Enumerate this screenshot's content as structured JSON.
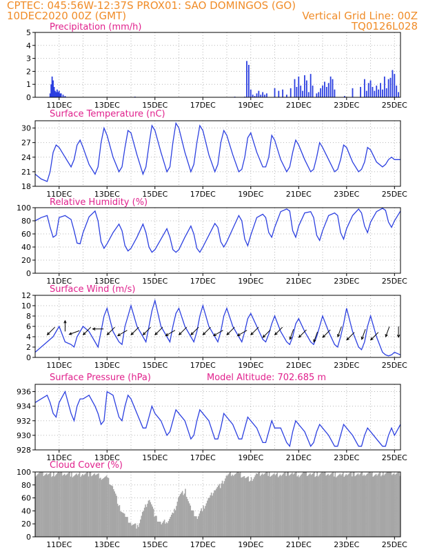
{
  "header": {
    "line1_left": "CPTEC:  045:56W-12:37S   PROX01: SAO DOMINGOS (GO)",
    "line2_left": "10DEC2020 00Z (GMT)",
    "line2_right": "Vertical Grid Line: 00Z",
    "line3_right": "TQ0126L028"
  },
  "colors": {
    "header": "#f08c28",
    "title": "#e0208c",
    "series": "#2b3fe0",
    "cloud": "#a6a6a6",
    "grid": "#b5b5b5"
  },
  "chart_data": [
    {
      "id": "precip",
      "type": "bar",
      "title": "Precipitation (mm/h)",
      "ylim": [
        0,
        5
      ],
      "yticks": [
        0,
        1,
        2,
        3,
        4,
        5
      ],
      "xticks": [
        "11DEC",
        "13DEC",
        "15DEC",
        "17DEC",
        "19DEC",
        "21DEC",
        "23DEC",
        "25DEC"
      ],
      "xrange_hours": [
        0,
        366
      ],
      "x": [
        15,
        16,
        17,
        18,
        19,
        20,
        21,
        22,
        23,
        24,
        25,
        26,
        28,
        30,
        100,
        200,
        210,
        212,
        214,
        216,
        218,
        220,
        222,
        224,
        226,
        228,
        230,
        232,
        240,
        244,
        248,
        252,
        256,
        260,
        262,
        264,
        266,
        268,
        270,
        272,
        274,
        276,
        278,
        282,
        284,
        286,
        288,
        290,
        292,
        294,
        296,
        298,
        300,
        310,
        318,
        326,
        330,
        332,
        334,
        336,
        338,
        340,
        342,
        344,
        346,
        348,
        350,
        352,
        354,
        356,
        358,
        360,
        362,
        364
      ],
      "values": [
        0.3,
        1.0,
        1.6,
        1.3,
        0.8,
        0.5,
        0.4,
        0.6,
        0.4,
        0.5,
        0.3,
        0.3,
        0.2,
        0.1,
        0.05,
        0.05,
        0.05,
        2.8,
        2.5,
        0.6,
        0.2,
        0.1,
        0.3,
        0.5,
        0.2,
        0.4,
        0.2,
        0.3,
        0.7,
        0.5,
        0.6,
        0.2,
        0.7,
        1.4,
        0.8,
        1.6,
        0.9,
        0.5,
        1.7,
        1.3,
        0.4,
        1.8,
        0.9,
        0.3,
        0.4,
        0.7,
        0.9,
        1.2,
        0.8,
        1.1,
        1.6,
        1.4,
        0.6,
        0.1,
        0.7,
        0.8,
        1.4,
        0.5,
        1.1,
        1.3,
        0.8,
        0.5,
        0.9,
        0.6,
        1.1,
        0.6,
        1.6,
        0.7,
        1.4,
        1.5,
        2.1,
        1.8,
        0.9,
        0.4
      ]
    },
    {
      "id": "temp",
      "type": "line",
      "title": "Surface Temperature (nC)",
      "ylim": [
        18,
        31.5
      ],
      "yticks": [
        18,
        21,
        24,
        27,
        30
      ],
      "xticks": [
        "11DEC",
        "13DEC",
        "15DEC",
        "17DEC",
        "19DEC",
        "21DEC",
        "23DEC",
        "25DEC"
      ],
      "xrange_hours": [
        0,
        366
      ],
      "x": [
        0,
        6,
        12,
        15,
        18,
        21,
        24,
        30,
        36,
        39,
        42,
        45,
        48,
        54,
        60,
        63,
        66,
        69,
        72,
        78,
        84,
        87,
        90,
        93,
        96,
        102,
        108,
        111,
        114,
        117,
        120,
        126,
        132,
        135,
        138,
        141,
        144,
        150,
        156,
        159,
        162,
        165,
        168,
        174,
        180,
        183,
        186,
        189,
        192,
        198,
        204,
        207,
        210,
        213,
        216,
        222,
        228,
        231,
        234,
        237,
        240,
        246,
        252,
        255,
        258,
        261,
        264,
        270,
        276,
        279,
        282,
        285,
        288,
        294,
        300,
        303,
        306,
        309,
        312,
        318,
        324,
        327,
        330,
        333,
        336,
        342,
        348,
        351,
        354,
        357,
        360,
        366
      ],
      "values": [
        20.5,
        19.5,
        19,
        21,
        25,
        26.5,
        26,
        24,
        22,
        23.5,
        26.5,
        27.5,
        26,
        22.5,
        20.5,
        22,
        27,
        30,
        28.5,
        24,
        21,
        22,
        26,
        29.5,
        29,
        24.5,
        20.5,
        22,
        26.5,
        30.5,
        29.5,
        25,
        21,
        22,
        27,
        31,
        30,
        25,
        21,
        22.5,
        27,
        30.5,
        29.5,
        24.5,
        21,
        22.5,
        27,
        29.5,
        28.5,
        24.5,
        21,
        21.5,
        24,
        28,
        29,
        25,
        22,
        22,
        24,
        28.5,
        27.5,
        23.5,
        21,
        22,
        25,
        27.5,
        26.5,
        23.5,
        21,
        21.5,
        24,
        27,
        26,
        23.5,
        21,
        21.5,
        23.5,
        26.5,
        26,
        23,
        21,
        21.5,
        23,
        26,
        25.5,
        23,
        22,
        22.5,
        23.5,
        24,
        23.5,
        23.5
      ]
    },
    {
      "id": "rh",
      "type": "line",
      "title": "Relative Humidity (%)",
      "ylim": [
        0,
        100
      ],
      "yticks": [
        0,
        20,
        40,
        60,
        80,
        100
      ],
      "xticks": [
        "11DEC",
        "13DEC",
        "15DEC",
        "17DEC",
        "19DEC",
        "21DEC",
        "23DEC",
        "25DEC"
      ],
      "xrange_hours": [
        0,
        366
      ],
      "x": [
        0,
        6,
        12,
        15,
        18,
        21,
        24,
        30,
        36,
        39,
        42,
        45,
        48,
        54,
        60,
        63,
        66,
        69,
        72,
        78,
        84,
        87,
        90,
        93,
        96,
        102,
        108,
        111,
        114,
        117,
        120,
        126,
        132,
        135,
        138,
        141,
        144,
        150,
        156,
        159,
        162,
        165,
        168,
        174,
        180,
        183,
        186,
        189,
        192,
        198,
        204,
        207,
        210,
        213,
        216,
        222,
        228,
        231,
        234,
        237,
        240,
        246,
        252,
        255,
        258,
        261,
        264,
        270,
        276,
        279,
        282,
        285,
        288,
        294,
        300,
        303,
        306,
        309,
        312,
        318,
        324,
        327,
        330,
        333,
        336,
        342,
        348,
        351,
        354,
        357,
        360,
        366
      ],
      "values": [
        80,
        85,
        88,
        70,
        55,
        58,
        85,
        88,
        82,
        65,
        46,
        45,
        62,
        86,
        95,
        80,
        48,
        38,
        45,
        62,
        75,
        65,
        42,
        34,
        38,
        55,
        75,
        62,
        40,
        32,
        36,
        52,
        68,
        55,
        36,
        32,
        36,
        55,
        72,
        60,
        38,
        32,
        40,
        58,
        76,
        70,
        48,
        40,
        48,
        68,
        88,
        80,
        52,
        42,
        58,
        85,
        90,
        85,
        62,
        55,
        70,
        94,
        98,
        95,
        65,
        55,
        72,
        92,
        94,
        85,
        58,
        50,
        65,
        88,
        92,
        88,
        62,
        52,
        68,
        88,
        98,
        92,
        72,
        62,
        78,
        94,
        99,
        96,
        78,
        70,
        80,
        95
      ]
    },
    {
      "id": "wind",
      "type": "line",
      "title": "Surface Wind (m/s)",
      "ylim": [
        0,
        12
      ],
      "yticks": [
        0,
        2,
        4,
        6,
        8,
        10,
        12
      ],
      "xticks": [
        "11DEC",
        "13DEC",
        "15DEC",
        "17DEC",
        "19DEC",
        "21DEC",
        "23DEC",
        "25DEC"
      ],
      "xrange_hours": [
        0,
        366
      ],
      "x": [
        0,
        6,
        12,
        15,
        18,
        21,
        24,
        30,
        36,
        39,
        42,
        45,
        48,
        54,
        60,
        63,
        66,
        69,
        72,
        78,
        84,
        87,
        90,
        93,
        96,
        102,
        108,
        111,
        114,
        117,
        120,
        126,
        132,
        135,
        138,
        141,
        144,
        150,
        156,
        159,
        162,
        165,
        168,
        174,
        180,
        183,
        186,
        189,
        192,
        198,
        204,
        207,
        210,
        213,
        216,
        222,
        228,
        231,
        234,
        237,
        240,
        246,
        252,
        255,
        258,
        261,
        264,
        270,
        276,
        279,
        282,
        285,
        288,
        294,
        300,
        303,
        306,
        309,
        312,
        318,
        324,
        327,
        330,
        333,
        336,
        342,
        348,
        351,
        354,
        357,
        360,
        366
      ],
      "values": [
        1,
        2,
        3,
        3.5,
        4,
        5,
        6,
        3,
        2.5,
        2,
        4,
        5,
        6,
        5,
        3,
        2,
        5,
        8,
        9.5,
        5,
        3,
        2.5,
        6,
        8,
        10,
        6,
        4,
        3,
        6,
        9,
        11,
        6,
        4,
        3,
        6,
        8.5,
        9.5,
        6,
        4,
        3,
        5,
        8,
        10,
        6,
        4,
        3,
        5,
        8,
        9.5,
        6,
        4,
        3,
        5,
        7.5,
        8.5,
        6,
        3.5,
        3,
        4.5,
        6.5,
        8,
        5,
        3,
        2.5,
        4,
        6.5,
        7.5,
        5,
        3,
        2.5,
        4,
        6,
        8,
        5,
        2.5,
        2,
        4,
        6.5,
        9.5,
        5,
        2,
        1.5,
        3,
        6,
        8,
        4,
        1,
        0.5,
        0.3,
        0.5,
        1,
        0.5
      ],
      "arrows": [
        {
          "hour": 18,
          "speed": 5.5,
          "dir_deg": 225
        },
        {
          "hour": 30,
          "speed": 5.5,
          "dir_deg": 0
        },
        {
          "hour": 42,
          "speed": 5.0,
          "dir_deg": 250
        },
        {
          "hour": 54,
          "speed": 5.5,
          "dir_deg": 225
        },
        {
          "hour": 66,
          "speed": 5.5,
          "dir_deg": 270
        },
        {
          "hour": 78,
          "speed": 5.5,
          "dir_deg": 225
        },
        {
          "hour": 90,
          "speed": 5.0,
          "dir_deg": 240
        },
        {
          "hour": 102,
          "speed": 5.5,
          "dir_deg": 225
        },
        {
          "hour": 114,
          "speed": 5.5,
          "dir_deg": 225
        },
        {
          "hour": 126,
          "speed": 5.5,
          "dir_deg": 225
        },
        {
          "hour": 138,
          "speed": 5.0,
          "dir_deg": 240
        },
        {
          "hour": 150,
          "speed": 5.5,
          "dir_deg": 225
        },
        {
          "hour": 162,
          "speed": 5.5,
          "dir_deg": 225
        },
        {
          "hour": 174,
          "speed": 5.5,
          "dir_deg": 225
        },
        {
          "hour": 186,
          "speed": 5.0,
          "dir_deg": 240
        },
        {
          "hour": 198,
          "speed": 5.5,
          "dir_deg": 225
        },
        {
          "hour": 210,
          "speed": 5.0,
          "dir_deg": 240
        },
        {
          "hour": 222,
          "speed": 5.5,
          "dir_deg": 225
        },
        {
          "hour": 234,
          "speed": 5.0,
          "dir_deg": 225
        },
        {
          "hour": 246,
          "speed": 5.5,
          "dir_deg": 225
        },
        {
          "hour": 258,
          "speed": 5.0,
          "dir_deg": 200
        },
        {
          "hour": 270,
          "speed": 5.0,
          "dir_deg": 225
        },
        {
          "hour": 282,
          "speed": 4.5,
          "dir_deg": 200
        },
        {
          "hour": 294,
          "speed": 5.0,
          "dir_deg": 225
        },
        {
          "hour": 306,
          "speed": 5.5,
          "dir_deg": 200
        },
        {
          "hour": 318,
          "speed": 4.5,
          "dir_deg": 225
        },
        {
          "hour": 330,
          "speed": 5.0,
          "dir_deg": 200
        },
        {
          "hour": 342,
          "speed": 4.5,
          "dir_deg": 225
        },
        {
          "hour": 354,
          "speed": 5.5,
          "dir_deg": 200
        },
        {
          "hour": 364,
          "speed": 5.5,
          "dir_deg": 180
        }
      ]
    },
    {
      "id": "pressure",
      "type": "line",
      "title": "Surface Pressure (hPa)",
      "annotation": "Model Altitude: 702.685 m",
      "ylim": [
        928,
        937
      ],
      "yticks": [
        928,
        930,
        932,
        934,
        936
      ],
      "xticks": [
        "11DEC",
        "13DEC",
        "15DEC",
        "17DEC",
        "19DEC",
        "21DEC",
        "23DEC",
        "25DEC"
      ],
      "xrange_hours": [
        0,
        366
      ],
      "x": [
        0,
        6,
        12,
        15,
        18,
        21,
        24,
        30,
        36,
        39,
        42,
        45,
        48,
        54,
        60,
        63,
        66,
        69,
        72,
        78,
        84,
        87,
        90,
        93,
        96,
        102,
        108,
        111,
        114,
        117,
        120,
        126,
        132,
        135,
        138,
        141,
        144,
        150,
        156,
        159,
        162,
        165,
        168,
        174,
        180,
        183,
        186,
        189,
        192,
        198,
        204,
        207,
        210,
        213,
        216,
        222,
        228,
        231,
        234,
        237,
        240,
        246,
        252,
        255,
        258,
        261,
        264,
        270,
        276,
        279,
        282,
        285,
        288,
        294,
        300,
        303,
        306,
        309,
        312,
        318,
        324,
        327,
        330,
        333,
        336,
        342,
        348,
        351,
        354,
        357,
        360,
        366
      ],
      "values": [
        934.5,
        935,
        935.5,
        934.5,
        933,
        932.5,
        934.5,
        936,
        933,
        932,
        934,
        935,
        935,
        935.5,
        934,
        933,
        931.5,
        932,
        936,
        935.5,
        932.5,
        932,
        934,
        935.5,
        935,
        933,
        931,
        931,
        932.5,
        934,
        933,
        932,
        930,
        930.5,
        932,
        933.5,
        933,
        932,
        929.5,
        930,
        932,
        933.5,
        933,
        932,
        929.5,
        929.5,
        931,
        933,
        932.5,
        931.5,
        929.5,
        929.5,
        931,
        932.5,
        932,
        931,
        929,
        929,
        930.5,
        932,
        931,
        931,
        929,
        928.5,
        930.5,
        932,
        931.5,
        930.5,
        928.5,
        929,
        930.5,
        931.5,
        931,
        930,
        928.5,
        928.5,
        930,
        931.5,
        931,
        930,
        928.5,
        928.5,
        930,
        931,
        930.5,
        929.5,
        928.5,
        928.5,
        930,
        931,
        930,
        931.5
      ]
    },
    {
      "id": "cloud",
      "type": "area",
      "title": "Cloud Cover (%)",
      "ylim": [
        0,
        100
      ],
      "yticks": [
        0,
        20,
        40,
        60,
        80,
        100
      ],
      "xticks": [
        "11DEC",
        "13DEC",
        "15DEC",
        "17DEC",
        "19DEC",
        "21DEC",
        "23DEC",
        "25DEC"
      ],
      "xrange_hours": [
        0,
        366
      ],
      "x": [
        0,
        6,
        12,
        18,
        24,
        30,
        36,
        42,
        48,
        54,
        60,
        66,
        72,
        78,
        84,
        90,
        96,
        102,
        108,
        114,
        120,
        126,
        132,
        138,
        144,
        150,
        156,
        162,
        168,
        174,
        180,
        186,
        192,
        198,
        204,
        210,
        216,
        222,
        228,
        234,
        240,
        246,
        252,
        258,
        264,
        270,
        276,
        282,
        288,
        294,
        300,
        306,
        312,
        318,
        324,
        330,
        336,
        342,
        348,
        354,
        360,
        366
      ],
      "values": [
        97,
        98,
        97,
        96,
        98,
        97,
        96,
        95,
        98,
        97,
        96,
        92,
        90,
        75,
        45,
        30,
        20,
        15,
        40,
        60,
        30,
        20,
        25,
        35,
        65,
        70,
        40,
        30,
        45,
        60,
        75,
        80,
        95,
        98,
        97,
        92,
        88,
        96,
        98,
        97,
        95,
        97,
        98,
        97,
        96,
        98,
        97,
        96,
        98,
        97,
        96,
        95,
        98,
        97,
        96,
        98,
        97,
        96,
        98,
        99,
        98,
        97
      ]
    }
  ]
}
